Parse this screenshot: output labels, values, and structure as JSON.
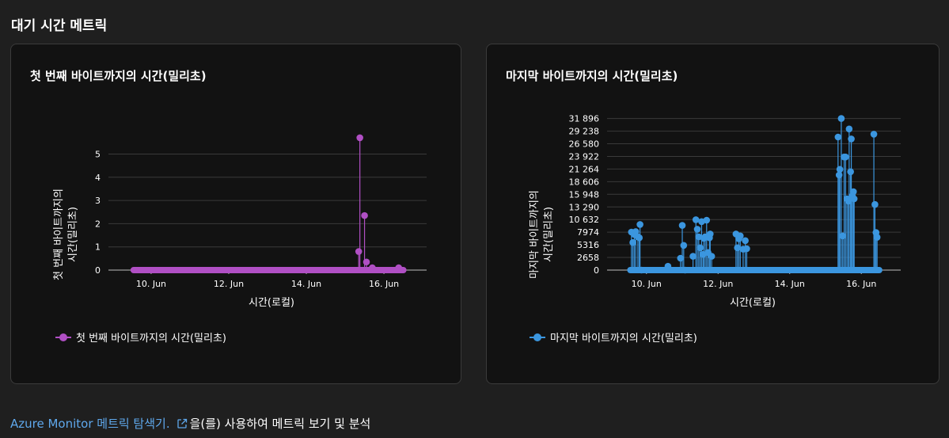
{
  "section": {
    "title": "대기 시간 메트릭"
  },
  "colors": {
    "ttfb": "#b04fc4",
    "ttlb": "#3b96df",
    "link": "#5fa8ec"
  },
  "charts": [
    {
      "title": "첫 번째 바이트까지의 시간(밀리초)",
      "ylabel_line1": "첫 번째 바이트까지의",
      "ylabel_line2": "시간(밀리초)",
      "xlabel": "시간(로컬)",
      "legend": "첫 번째 바이트까지의 시간(밀리초)"
    },
    {
      "title": "마지막 바이트까지의 시간(밀리초)",
      "ylabel_line1": "마지막 바이트까지의",
      "ylabel_line2": "시간(밀리초)",
      "xlabel": "시간(로컬)",
      "legend": "마지막 바이트까지의 시간(밀리초)"
    }
  ],
  "footer": {
    "link_text": "Azure Monitor 메트릭 탐색기.",
    "link_icon": "external-link-icon",
    "rest_text": "을(를) 사용하여 메트릭 보기 및 분석"
  },
  "chart_data": [
    {
      "type": "line",
      "title": "첫 번째 바이트까지의 시간(밀리초)",
      "xlabel": "시간(로컬)",
      "ylabel": "첫 번째 바이트까지의 시간(밀리초)",
      "x_ticks": [
        "10. Jun",
        "12. Jun",
        "14. Jun",
        "16. Jun"
      ],
      "x_tick_values": [
        10,
        12,
        14,
        16
      ],
      "y_ticks": [
        0,
        1,
        2,
        3,
        4,
        5
      ],
      "xlim": [
        8.9,
        17.1
      ],
      "ylim": [
        0,
        5.8
      ],
      "grid": true,
      "legend_placement": "bottom-left",
      "series": [
        {
          "name": "첫 번째 바이트까지의 시간(밀리초)",
          "color": "#b04fc4",
          "baseline_range": [
            9.55,
            16.5
          ],
          "points": [
            [
              15.35,
              0.8
            ],
            [
              15.38,
              5.7
            ],
            [
              15.5,
              2.35
            ],
            [
              15.55,
              0.35
            ],
            [
              15.7,
              0.1
            ],
            [
              16.38,
              0.1
            ]
          ]
        }
      ]
    },
    {
      "type": "line",
      "title": "마지막 바이트까지의 시간(밀리초)",
      "xlabel": "시간(로컬)",
      "ylabel": "마지막 바이트까지의 시간(밀리초)",
      "x_ticks": [
        "10. Jun",
        "12. Jun",
        "14. Jun",
        "16. Jun"
      ],
      "x_tick_values": [
        10,
        12,
        14,
        16
      ],
      "y_ticks": [
        0,
        2658,
        5316,
        7974,
        10632,
        13290,
        15948,
        18606,
        21264,
        23922,
        26580,
        29238,
        31896
      ],
      "y_tick_labels": [
        "0",
        "2658",
        "5316",
        "7974",
        "10 632",
        "13 290",
        "15 948",
        "18 606",
        "21 264",
        "23 922",
        "26 580",
        "29 238",
        "31 896"
      ],
      "xlim": [
        8.9,
        17.1
      ],
      "ylim": [
        0,
        32500
      ],
      "grid": true,
      "legend_placement": "bottom-left",
      "series": [
        {
          "name": "마지막 바이트까지의 시간(밀리초)",
          "color": "#3b96df",
          "baseline_range": [
            9.55,
            16.5
          ],
          "points": [
            [
              9.58,
              8000
            ],
            [
              9.62,
              5800
            ],
            [
              9.66,
              7500
            ],
            [
              9.7,
              8100
            ],
            [
              9.76,
              7000
            ],
            [
              9.8,
              6800
            ],
            [
              9.82,
              9600
            ],
            [
              9.86,
              0
            ],
            [
              10.6,
              800
            ],
            [
              10.95,
              2500
            ],
            [
              11.0,
              9400
            ],
            [
              11.04,
              5200
            ],
            [
              11.08,
              0
            ],
            [
              11.3,
              2900
            ],
            [
              11.38,
              10600
            ],
            [
              11.42,
              8600
            ],
            [
              11.46,
              7000
            ],
            [
              11.5,
              4700
            ],
            [
              11.54,
              10200
            ],
            [
              11.58,
              3300
            ],
            [
              11.6,
              6700
            ],
            [
              11.64,
              7000
            ],
            [
              11.68,
              10500
            ],
            [
              11.72,
              3700
            ],
            [
              11.76,
              6800
            ],
            [
              11.78,
              7600
            ],
            [
              11.82,
              2900
            ],
            [
              12.5,
              7600
            ],
            [
              12.54,
              4700
            ],
            [
              12.58,
              6600
            ],
            [
              12.62,
              7200
            ],
            [
              12.7,
              4400
            ],
            [
              12.76,
              6200
            ],
            [
              12.8,
              4500
            ],
            [
              15.35,
              28000
            ],
            [
              15.38,
              20000
            ],
            [
              15.4,
              21200
            ],
            [
              15.44,
              31900
            ],
            [
              15.48,
              7200
            ],
            [
              15.52,
              23800
            ],
            [
              15.56,
              23800
            ],
            [
              15.6,
              15000
            ],
            [
              15.64,
              14500
            ],
            [
              15.66,
              29700
            ],
            [
              15.7,
              20700
            ],
            [
              15.72,
              27600
            ],
            [
              15.75,
              15600
            ],
            [
              15.78,
              16500
            ],
            [
              15.8,
              15000
            ],
            [
              16.35,
              28600
            ],
            [
              16.38,
              13800
            ],
            [
              16.41,
              7900
            ],
            [
              16.44,
              6900
            ]
          ]
        }
      ]
    }
  ]
}
